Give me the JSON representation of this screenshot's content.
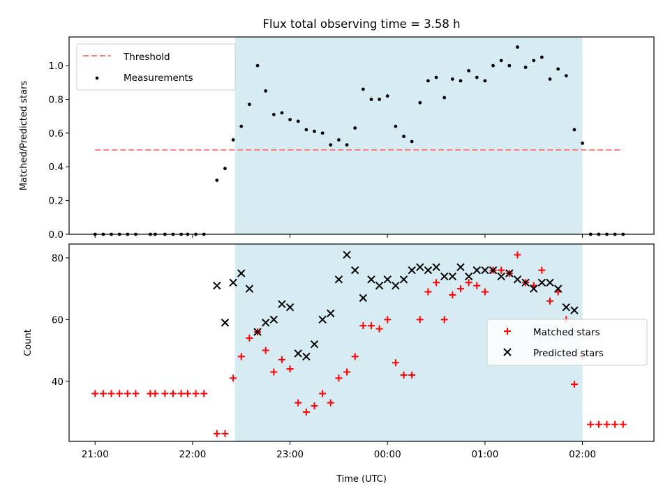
{
  "chart_data": [
    {
      "type": "scatter",
      "title": "Flux total observing time = 3.58 h",
      "xlabel": "",
      "ylabel": "Matched/Predicted stars",
      "xlim": [
        "20:44",
        "02:44"
      ],
      "ylim": [
        0,
        1.17
      ],
      "yticks": [
        "0.0",
        "0.2",
        "0.4",
        "0.6",
        "0.8",
        "1.0"
      ],
      "shaded_span": {
        "start": "22:26",
        "end": "02:00",
        "color": "#add8e6"
      },
      "legend_position": "upper-left",
      "series": [
        {
          "name": "Threshold",
          "kind": "dashed-line",
          "color": "#ff7f7f",
          "x": [
            "21:00",
            "02:25"
          ],
          "y": [
            0.5,
            0.5
          ]
        },
        {
          "name": "Measurements",
          "kind": "dots",
          "color": "#000000",
          "x": [
            "21:00",
            "21:05",
            "21:10",
            "21:15",
            "21:20",
            "21:25",
            "21:34",
            "21:37",
            "21:43",
            "21:48",
            "21:53",
            "21:57",
            "22:02",
            "22:07",
            "22:15",
            "22:20",
            "22:25",
            "22:30",
            "22:35",
            "22:40",
            "22:45",
            "22:50",
            "22:55",
            "23:00",
            "23:05",
            "23:10",
            "23:15",
            "23:20",
            "23:25",
            "23:30",
            "23:35",
            "23:40",
            "23:45",
            "23:50",
            "23:55",
            "24:00",
            "24:05",
            "24:10",
            "24:15",
            "24:20",
            "24:25",
            "24:30",
            "24:35",
            "24:40",
            "24:45",
            "24:50",
            "24:55",
            "25:00",
            "25:05",
            "25:10",
            "25:15",
            "25:20",
            "25:25",
            "25:30",
            "25:35",
            "25:40",
            "25:45",
            "25:50",
            "25:55",
            "26:00",
            "26:05",
            "26:10",
            "26:15",
            "26:20",
            "26:25"
          ],
          "y": [
            0,
            0,
            0,
            0,
            0,
            0,
            0,
            0,
            0,
            0,
            0,
            0,
            0,
            0,
            0.32,
            0.39,
            0.56,
            0.64,
            0.77,
            1.0,
            0.85,
            0.71,
            0.72,
            0.68,
            0.67,
            0.62,
            0.61,
            0.6,
            0.53,
            0.56,
            0.53,
            0.63,
            0.86,
            0.8,
            0.8,
            0.82,
            0.64,
            0.58,
            0.55,
            0.78,
            0.91,
            0.93,
            0.81,
            0.92,
            0.91,
            0.97,
            0.93,
            0.91,
            1.0,
            1.03,
            1.0,
            1.11,
            0.99,
            1.03,
            1.05,
            0.92,
            0.98,
            0.94,
            0.62,
            0.54,
            0,
            0,
            0,
            0,
            0
          ]
        }
      ]
    },
    {
      "type": "scatter",
      "xlabel": "Time (UTC)",
      "ylabel": "Count",
      "xticks": [
        "21:00",
        "22:00",
        "23:00",
        "00:00",
        "01:00",
        "02:00"
      ],
      "yticks": [
        "40",
        "60",
        "80"
      ],
      "xlim": [
        "20:44",
        "02:44"
      ],
      "ylim": [
        20.5,
        84.5
      ],
      "shaded_span": {
        "start": "22:26",
        "end": "02:00",
        "color": "#add8e6"
      },
      "legend_position": "center-right",
      "series": [
        {
          "name": "Matched stars",
          "marker": "plus",
          "color": "#ff0000",
          "x": [
            "21:00",
            "21:05",
            "21:10",
            "21:15",
            "21:20",
            "21:25",
            "21:34",
            "21:37",
            "21:43",
            "21:48",
            "21:53",
            "21:57",
            "22:02",
            "22:07",
            "22:15",
            "22:20",
            "22:25",
            "22:30",
            "22:35",
            "22:40",
            "22:45",
            "22:50",
            "22:55",
            "23:00",
            "23:05",
            "23:10",
            "23:15",
            "23:20",
            "23:25",
            "23:30",
            "23:35",
            "23:40",
            "23:45",
            "23:50",
            "23:55",
            "24:00",
            "24:05",
            "24:10",
            "24:15",
            "24:20",
            "24:25",
            "24:30",
            "24:35",
            "24:40",
            "24:45",
            "24:50",
            "24:55",
            "25:00",
            "25:05",
            "25:10",
            "25:15",
            "25:20",
            "25:25",
            "25:30",
            "25:35",
            "25:40",
            "25:45",
            "25:50",
            "25:55",
            "26:00",
            "26:05",
            "26:10",
            "26:15",
            "26:20",
            "26:25"
          ],
          "y": [
            36,
            36,
            36,
            36,
            36,
            36,
            36,
            36,
            36,
            36,
            36,
            36,
            36,
            36,
            23,
            23,
            41,
            48,
            54,
            56,
            50,
            43,
            47,
            44,
            33,
            30,
            32,
            36,
            33,
            41,
            43,
            48,
            58,
            58,
            57,
            60,
            46,
            42,
            42,
            60,
            69,
            72,
            60,
            68,
            70,
            72,
            71,
            69,
            76,
            76,
            75,
            81,
            72,
            71,
            76,
            66,
            69,
            60,
            39,
            48,
            26,
            26,
            26,
            26,
            26
          ]
        },
        {
          "name": "Predicted stars",
          "marker": "x",
          "color": "#000000",
          "x": [
            "22:15",
            "22:20",
            "22:25",
            "22:30",
            "22:35",
            "22:40",
            "22:45",
            "22:50",
            "22:55",
            "23:00",
            "23:05",
            "23:10",
            "23:15",
            "23:20",
            "23:25",
            "23:30",
            "23:35",
            "23:40",
            "23:45",
            "23:50",
            "23:55",
            "24:00",
            "24:05",
            "24:10",
            "24:15",
            "24:20",
            "24:25",
            "24:30",
            "24:35",
            "24:40",
            "24:45",
            "24:50",
            "24:55",
            "25:00",
            "25:05",
            "25:10",
            "25:15",
            "25:20",
            "25:25",
            "25:30",
            "25:35",
            "25:40",
            "25:45",
            "25:50",
            "25:55"
          ],
          "y": [
            71,
            59,
            72,
            75,
            70,
            56,
            59,
            60,
            65,
            64,
            49,
            48,
            52,
            60,
            62,
            73,
            81,
            76,
            67,
            73,
            71,
            73,
            71,
            73,
            76,
            77,
            76,
            77,
            74,
            74,
            77,
            74,
            76,
            76,
            76,
            74,
            75,
            73,
            72,
            70,
            72,
            72,
            70,
            64,
            63
          ]
        }
      ]
    }
  ]
}
